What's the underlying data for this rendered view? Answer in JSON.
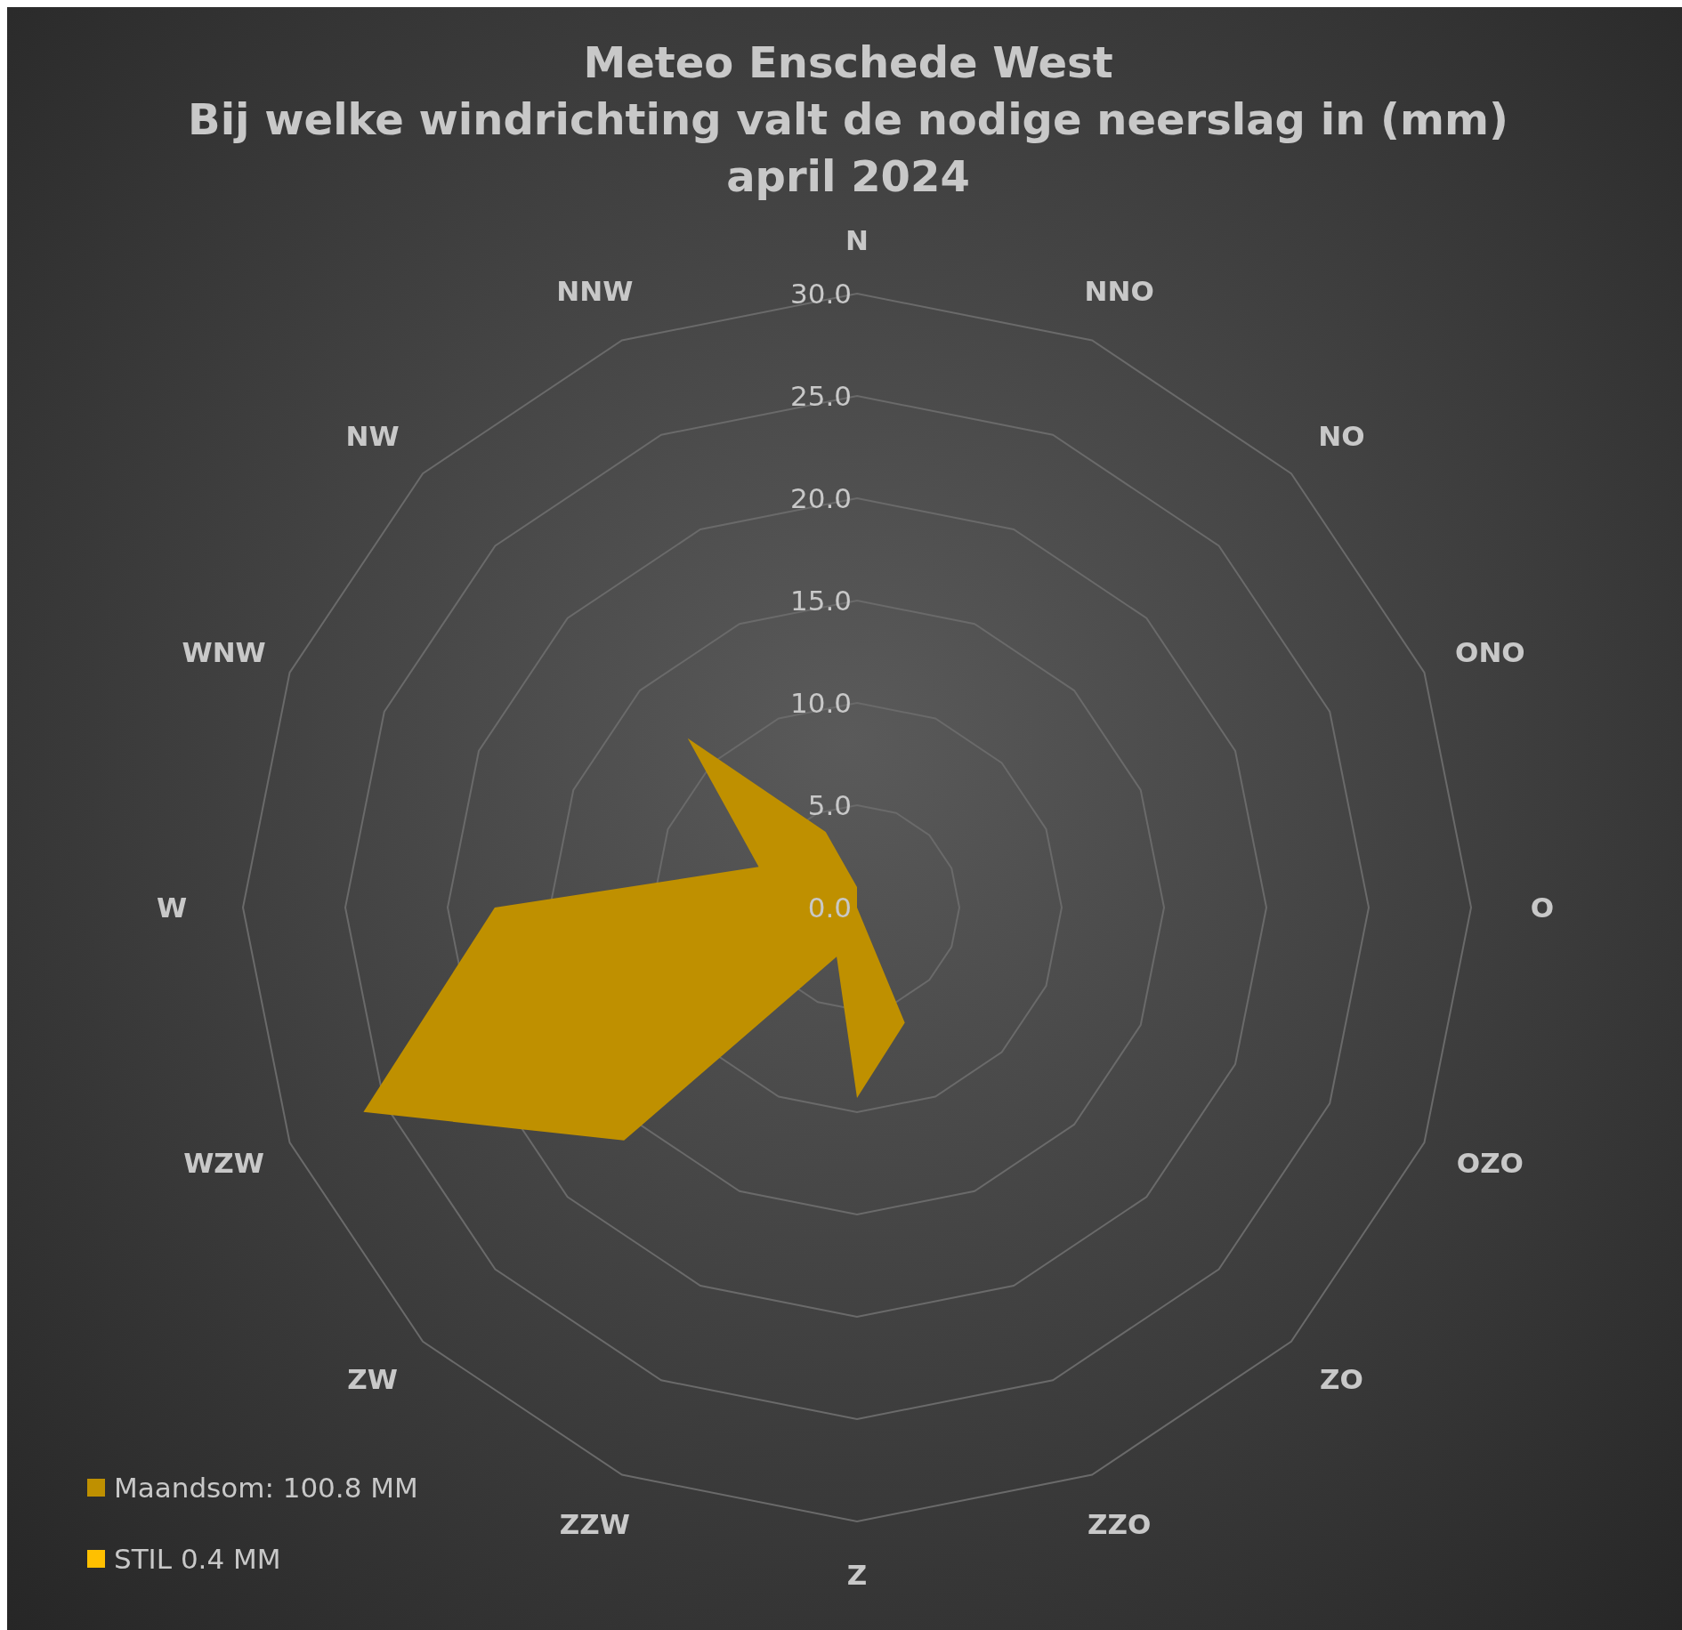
{
  "chart_data": {
    "type": "radar",
    "title": "Meteo Enschede West",
    "subtitle": "Bij welke windrichting valt de nodige neerslag in (mm)\napril 2024",
    "categories": [
      "N",
      "NNO",
      "NO",
      "ONO",
      "O",
      "OZO",
      "ZO",
      "ZZO",
      "Z",
      "ZZW",
      "ZW",
      "WZW",
      "W",
      "WNW",
      "NW",
      "NNW"
    ],
    "series": [
      {
        "name": "Maandsom: 100.8 MM",
        "color": "#bf9000",
        "values": [
          1.0,
          0,
          0,
          0,
          0,
          0,
          0,
          6.1,
          9.3,
          2.6,
          16.1,
          26.1,
          17.7,
          5.2,
          11.7,
          4.0
        ]
      },
      {
        "name": "STIL 0.4 MM",
        "color": "#ffc000",
        "values": [
          null,
          null,
          null,
          null,
          null,
          null,
          null,
          null,
          null,
          null,
          null,
          null,
          null,
          null,
          null,
          null
        ]
      }
    ],
    "ylim": [
      0,
      30
    ],
    "yticks": [
      {
        "value": 0,
        "label": "0.0"
      },
      {
        "value": 5,
        "label": "5.0"
      },
      {
        "value": 10,
        "label": "10.0"
      },
      {
        "value": 15,
        "label": "15.0"
      },
      {
        "value": 20,
        "label": "20.0"
      },
      {
        "value": 25,
        "label": "25.0"
      },
      {
        "value": 30,
        "label": "30.0"
      }
    ],
    "grid": true,
    "legend": "bottom left"
  }
}
